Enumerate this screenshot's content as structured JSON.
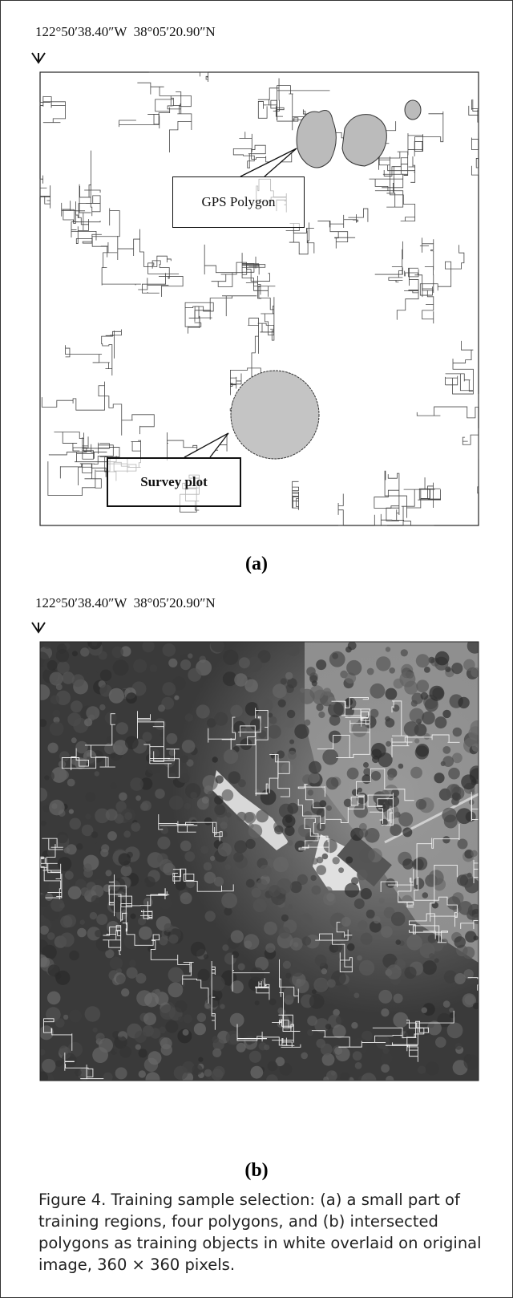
{
  "panels": [
    {
      "coordinates": "122°50′38.40″W  38°05′20.90″N",
      "callouts": [
        "GPS Polygon",
        "Survey plot"
      ],
      "label": "(a)"
    },
    {
      "coordinates": "122°50′38.40″W  38°05′20.90″N",
      "label": "(b)"
    }
  ],
  "caption": "Figure 4. Training sample selection: (a) a small part of training regions, four polygons, and (b) intersected polygons as training objects in white overlaid on original image, 360 × 360 pixels."
}
